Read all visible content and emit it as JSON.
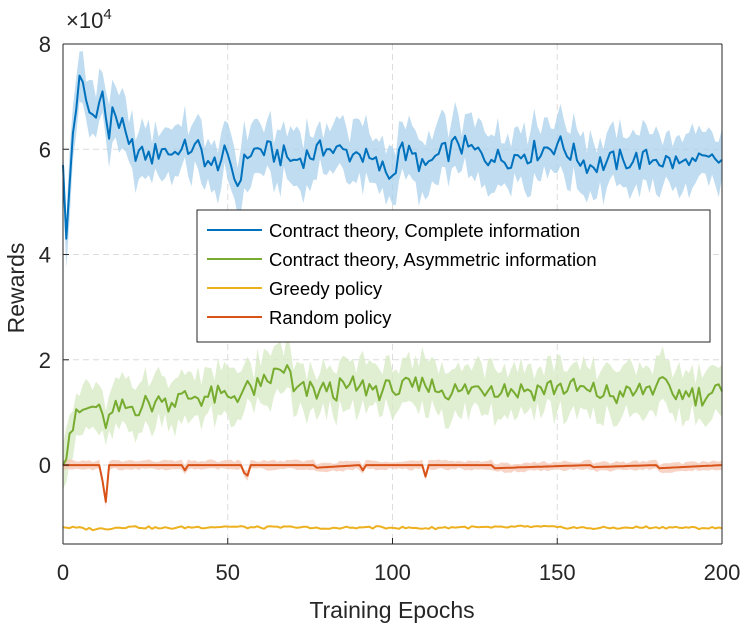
{
  "chart_data": {
    "type": "line",
    "xlabel": "Training Epochs",
    "ylabel": "Rewards",
    "exponent_base": "×10",
    "exponent_power": "4",
    "xlim": [
      0,
      200
    ],
    "ylim": [
      -15000,
      80000
    ],
    "x_ticks": [
      0,
      50,
      100,
      150,
      200
    ],
    "x_tick_labels": [
      "0",
      "50",
      "100",
      "150",
      "200"
    ],
    "y_ticks": [
      0,
      20000,
      40000,
      60000,
      80000
    ],
    "y_tick_labels": [
      "0",
      "2",
      "4",
      "6",
      "8"
    ],
    "grid": true,
    "legend_position": "center-right",
    "series": [
      {
        "name": "Contract theory, Complete information",
        "color": "#0072BD",
        "band_color": "#a9d0ec",
        "x": [
          0,
          1,
          3,
          5,
          8,
          10,
          12,
          14,
          15,
          20,
          25,
          30,
          35,
          40,
          45,
          50,
          53,
          55,
          60,
          70,
          80,
          90,
          100,
          102,
          110,
          120,
          130,
          140,
          150,
          160,
          170,
          180,
          190,
          200
        ],
        "values": [
          57000,
          43000,
          63000,
          74000,
          67000,
          66000,
          71000,
          62000,
          68000,
          61000,
          58000,
          60000,
          59000,
          61000,
          57000,
          59000,
          53000,
          59000,
          60000,
          58000,
          60000,
          59000,
          55000,
          60000,
          57000,
          61000,
          58000,
          59000,
          61000,
          57000,
          58000,
          58000,
          57000,
          58000
        ],
        "band_halfwidth": 5000
      },
      {
        "name": "Contract theory, Asymmetric information",
        "color": "#77AC30",
        "band_color": "#d6e9c3",
        "x": [
          0,
          2,
          5,
          10,
          13,
          15,
          20,
          30,
          40,
          50,
          60,
          68,
          70,
          80,
          90,
          100,
          110,
          120,
          130,
          140,
          150,
          160,
          170,
          180,
          190,
          200
        ],
        "values": [
          0,
          6000,
          10000,
          11000,
          7000,
          10000,
          11000,
          12000,
          13000,
          13000,
          15000,
          19000,
          14000,
          14000,
          15000,
          14000,
          15000,
          14000,
          15000,
          14000,
          15000,
          14000,
          13000,
          15000,
          13000,
          14000
        ],
        "band_halfwidth": 4500
      },
      {
        "name": "Greedy policy",
        "color": "#EDB120",
        "x": [
          0,
          10,
          20,
          30,
          40,
          50,
          60,
          70,
          80,
          90,
          100,
          110,
          120,
          130,
          140,
          150,
          160,
          170,
          180,
          190,
          200
        ],
        "values": [
          -11800,
          -12200,
          -11700,
          -12000,
          -11800,
          -11700,
          -11900,
          -11800,
          -12100,
          -11800,
          -11900,
          -12000,
          -11800,
          -11900,
          -11700,
          -11800,
          -12000,
          -11900,
          -11800,
          -11900,
          -12000
        ],
        "band_halfwidth": 0
      },
      {
        "name": "Random policy",
        "color": "#D95319",
        "band_color": "#f4c6b3",
        "x": [
          0,
          11,
          12,
          13,
          14,
          20,
          36,
          37,
          38,
          54,
          55,
          56,
          57,
          76,
          77,
          90,
          91,
          92,
          109,
          110,
          111,
          112,
          130,
          131,
          160,
          161,
          180,
          181,
          200
        ],
        "values": [
          0,
          0,
          -3000,
          -7000,
          0,
          0,
          0,
          -1000,
          0,
          0,
          -1500,
          -2000,
          0,
          0,
          -500,
          0,
          -1000,
          0,
          0,
          -2200,
          0,
          0,
          0,
          -600,
          0,
          -400,
          0,
          -600,
          0
        ],
        "band_halfwidth": 800
      }
    ]
  }
}
